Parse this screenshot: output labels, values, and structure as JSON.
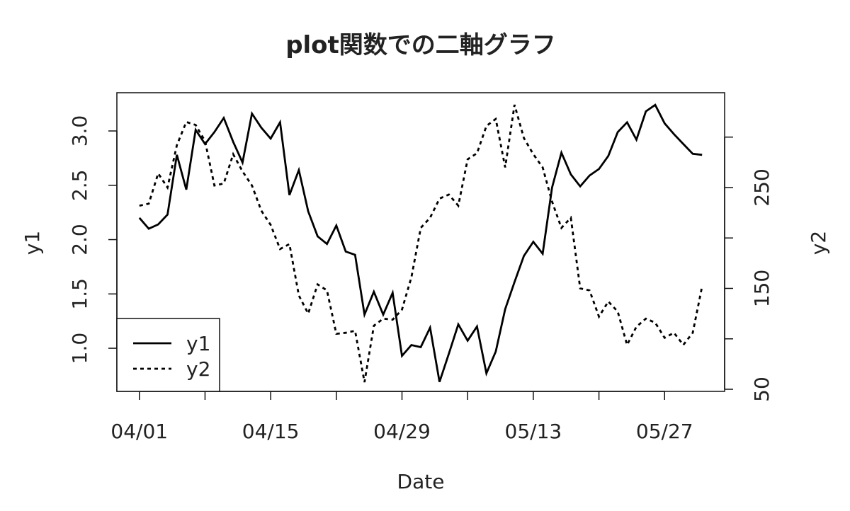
{
  "chart_data": {
    "type": "line",
    "title": "plot関数での二軸グラフ",
    "x_label": "Date",
    "y_label": "y1",
    "y2_label": "y2",
    "x": [
      "04/01",
      "04/02",
      "04/03",
      "04/04",
      "04/05",
      "04/06",
      "04/07",
      "04/08",
      "04/09",
      "04/10",
      "04/11",
      "04/12",
      "04/13",
      "04/14",
      "04/15",
      "04/16",
      "04/17",
      "04/18",
      "04/19",
      "04/20",
      "04/21",
      "04/22",
      "04/23",
      "04/24",
      "04/25",
      "04/26",
      "04/27",
      "04/28",
      "04/29",
      "04/30",
      "05/01",
      "05/02",
      "05/03",
      "05/04",
      "05/05",
      "05/06",
      "05/07",
      "05/08",
      "05/09",
      "05/10",
      "05/11",
      "05/12",
      "05/13",
      "05/14",
      "05/15",
      "05/16",
      "05/17",
      "05/18",
      "05/19",
      "05/20",
      "05/21",
      "05/22",
      "05/23",
      "05/24",
      "05/25",
      "05/26",
      "05/27",
      "05/28",
      "05/29",
      "05/30",
      "05/31"
    ],
    "series": [
      {
        "name": "y1",
        "color": "#000000",
        "dash": "solid",
        "values": [
          2.2,
          2.1,
          2.14,
          2.23,
          2.78,
          2.46,
          3.01,
          2.88,
          2.99,
          3.12,
          2.9,
          2.71,
          3.16,
          3.03,
          2.93,
          3.08,
          2.41,
          2.64,
          2.26,
          2.03,
          1.96,
          2.13,
          1.89,
          1.86,
          1.31,
          1.52,
          1.31,
          1.51,
          0.93,
          1.03,
          1.01,
          1.19,
          0.69,
          0.95,
          1.22,
          1.07,
          1.2,
          0.77,
          0.97,
          1.36,
          1.61,
          1.85,
          1.98,
          1.87,
          2.48,
          2.8,
          2.6,
          2.49,
          2.59,
          2.65,
          2.77,
          2.99,
          3.08,
          2.92,
          3.18,
          3.24,
          3.07,
          2.97,
          2.88,
          2.79,
          2.78
        ]
      },
      {
        "name": "y2",
        "color": "#000000",
        "dash": "dotted",
        "axis": "y2",
        "values": [
          232,
          234,
          264,
          250,
          292,
          315,
          312,
          296,
          252,
          254,
          283,
          266,
          252,
          227,
          213,
          189,
          194,
          143,
          125,
          154,
          148,
          105,
          106,
          108,
          57,
          113,
          120,
          119,
          129,
          161,
          210,
          220,
          239,
          243,
          232,
          278,
          284,
          311,
          318,
          270,
          332,
          299,
          283,
          270,
          236,
          210,
          220,
          150,
          148,
          122,
          137,
          127,
          94,
          112,
          120,
          116,
          101,
          106,
          94,
          106,
          152
        ]
      }
    ],
    "xticks": [
      "04/01",
      "04/15",
      "04/29",
      "05/13",
      "05/27"
    ],
    "xticks_unlabeled": [
      "04/08",
      "04/22",
      "05/06",
      "05/20"
    ],
    "ylim": [
      0.603,
      3.352
    ],
    "yticks": [
      1.0,
      1.5,
      2.0,
      2.5,
      3.0
    ],
    "y2lim": [
      47.9,
      344
    ],
    "y2ticks": [
      50,
      150,
      250
    ],
    "y2ticks_unlabeled": [
      100,
      200,
      300
    ],
    "legend": "bottom-left",
    "grid": false
  }
}
